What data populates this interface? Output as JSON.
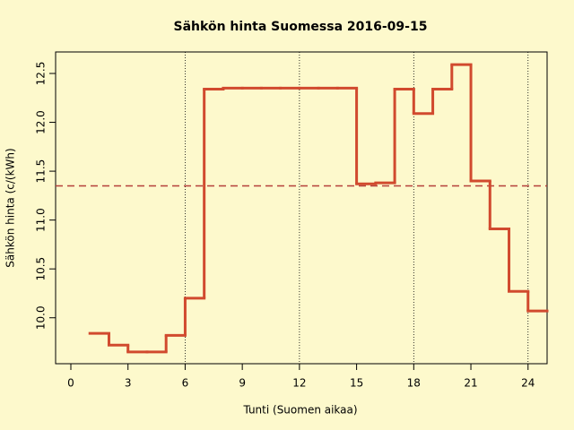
{
  "chart_data": {
    "type": "step",
    "title": "Sähkön hinta Suomessa 2016-09-15",
    "x_label": "Tunti (Suomen aikaa)",
    "y_label": "Sähkön hinta (c/(kWh)",
    "x": [
      1,
      2,
      3,
      4,
      5,
      6,
      7,
      8,
      9,
      10,
      11,
      12,
      13,
      14,
      15,
      16,
      17,
      18,
      19,
      20,
      21,
      22,
      23,
      24
    ],
    "values": [
      9.84,
      9.72,
      9.65,
      9.65,
      9.82,
      10.2,
      12.34,
      12.35,
      12.35,
      12.35,
      12.35,
      12.35,
      12.35,
      12.35,
      11.37,
      11.38,
      12.34,
      12.09,
      12.34,
      12.59,
      11.4,
      10.91,
      10.27,
      10.07
    ],
    "color": "#d14a2e",
    "mean_line": 11.35,
    "mean_color": "#b5403a",
    "vlines": [
      6,
      12,
      18,
      24
    ],
    "xlim": [
      -0.8,
      25
    ],
    "ylim": [
      9.53,
      12.72
    ],
    "xticks": [
      0,
      3,
      6,
      9,
      12,
      15,
      18,
      21,
      24
    ],
    "yticks": [
      {
        "value": 10,
        "label": "10.0"
      },
      10.5,
      {
        "value": 11,
        "label": "11.0"
      },
      11.5,
      {
        "value": 12,
        "label": "12.0"
      },
      12.5
    ]
  }
}
